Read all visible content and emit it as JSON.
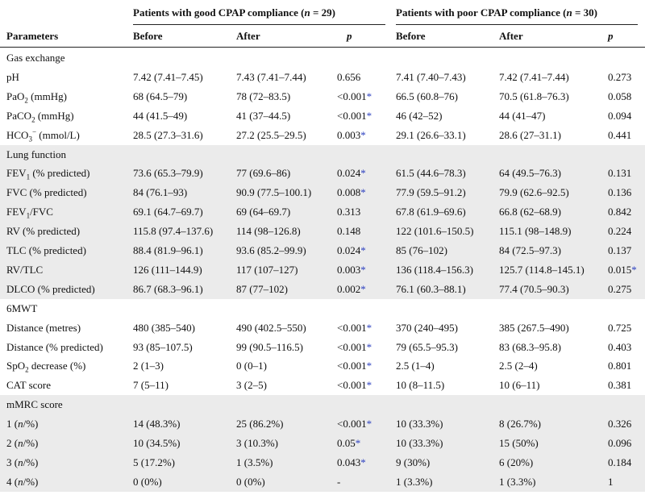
{
  "header": {
    "group_good": "Patients with good CPAP compliance",
    "group_good_n": "29",
    "group_poor": "Patients with poor CPAP compliance",
    "group_poor_n": "30",
    "n_label": "n",
    "equals": "=",
    "parameters": "Parameters",
    "before": "Before",
    "after": "After",
    "p": "p"
  },
  "sections": [
    {
      "title": "Gas exchange",
      "shaded": false,
      "rows": [
        {
          "label": "pH",
          "gb": "7.42 (7.41–7.45)",
          "ga": "7.43 (7.41–7.44)",
          "gp": "0.656",
          "gs": false,
          "pb": "7.41 (7.40–7.43)",
          "pa": "7.42 (7.41–7.44)",
          "pp": "0.273",
          "ps": false
        },
        {
          "label": "PaO",
          "sub": "2",
          "rest": " (mmHg)",
          "gb": "68 (64.5–79)",
          "ga": "78 (72–83.5)",
          "gp": "<0.001",
          "gs": true,
          "pb": "66.5 (60.8–76)",
          "pa": "70.5 (61.8–76.3)",
          "pp": "0.058",
          "ps": false
        },
        {
          "label": "PaCO",
          "sub": "2",
          "rest": " (mmHg)",
          "gb": "44 (41.5–49)",
          "ga": "41 (37–44.5)",
          "gp": "<0.001",
          "gs": true,
          "pb": "46 (42–52)",
          "pa": "44 (41–47)",
          "pp": "0.094",
          "ps": false
        },
        {
          "label": "HCO",
          "sub": "3",
          "sup": "−",
          "rest": " (mmol/L)",
          "gb": "28.5 (27.3–31.6)",
          "ga": "27.2 (25.5–29.5)",
          "gp": "0.003",
          "gs": true,
          "pb": "29.1 (26.6–33.1)",
          "pa": "28.6 (27–31.1)",
          "pp": "0.441",
          "ps": false
        }
      ]
    },
    {
      "title": "Lung function",
      "shaded": true,
      "rows": [
        {
          "label": "FEV",
          "sub": "1",
          "rest": " (% predicted)",
          "gb": "73.6 (65.3–79.9)",
          "ga": "77 (69.6–86)",
          "gp": "0.024",
          "gs": true,
          "pb": "61.5 (44.6–78.3)",
          "pa": "64 (49.5–76.3)",
          "pp": "0.131",
          "ps": false
        },
        {
          "label": "FVC (% predicted)",
          "gb": "84 (76.1–93)",
          "ga": "90.9 (77.5–100.1)",
          "gp": "0.008",
          "gs": true,
          "pb": "77.9 (59.5–91.2)",
          "pa": "79.9 (62.6–92.5)",
          "pp": "0.136",
          "ps": false
        },
        {
          "label": "FEV",
          "sub": "1",
          "rest": "/FVC",
          "gb": "69.1 (64.7–69.7)",
          "ga": "69 (64–69.7)",
          "gp": "0.313",
          "gs": false,
          "pb": "67.8 (61.9–69.6)",
          "pa": "66.8 (62–68.9)",
          "pp": "0.842",
          "ps": false
        },
        {
          "label": "RV (% predicted)",
          "gb": "115.8 (97.4–137.6)",
          "ga": "114 (98–126.8)",
          "gp": "0.148",
          "gs": false,
          "pb": "122 (101.6–150.5)",
          "pa": "115.1 (98–148.9)",
          "pp": "0.224",
          "ps": false
        },
        {
          "label": "TLC (% predicted)",
          "gb": "88.4 (81.9–96.1)",
          "ga": "93.6 (85.2–99.9)",
          "gp": "0.024",
          "gs": true,
          "pb": "85 (76–102)",
          "pa": "84 (72.5–97.3)",
          "pp": "0.137",
          "ps": false
        },
        {
          "label": "RV/TLC",
          "gb": "126 (111–144.9)",
          "ga": "117 (107–127)",
          "gp": "0.003",
          "gs": true,
          "pb": "136 (118.4–156.3)",
          "pa": "125.7 (114.8–145.1)",
          "pp": "0.015",
          "ps": true
        },
        {
          "label": "DLCO (% predicted)",
          "gb": "86.7 (68.3–96.1)",
          "ga": "87 (77–102)",
          "gp": "0.002",
          "gs": true,
          "pb": "76.1 (60.3–88.1)",
          "pa": "77.4 (70.5–90.3)",
          "pp": "0.275",
          "ps": false
        }
      ]
    },
    {
      "title": "6MWT",
      "shaded": false,
      "rows": [
        {
          "label": "Distance (metres)",
          "gb": "480 (385–540)",
          "ga": "490 (402.5–550)",
          "gp": "<0.001",
          "gs": true,
          "pb": "370 (240–495)",
          "pa": "385 (267.5–490)",
          "pp": "0.725",
          "ps": false
        },
        {
          "label": "Distance (% predicted)",
          "gb": "93 (85–107.5)",
          "ga": "99 (90.5–116.5)",
          "gp": "<0.001",
          "gs": true,
          "pb": "79 (65.5–95.3)",
          "pa": "83 (68.3–95.8)",
          "pp": "0.403",
          "ps": false
        },
        {
          "label": "SpO",
          "sub": "2",
          "rest": " decrease (%)",
          "gb": "2 (1–3)",
          "ga": "0 (0–1)",
          "gp": "<0.001",
          "gs": true,
          "pb": "2.5 (1–4)",
          "pa": "2.5 (2–4)",
          "pp": "0.801",
          "ps": false
        },
        {
          "label": "CAT score",
          "gb": "7 (5–11)",
          "ga": "3 (2–5)",
          "gp": "<0.001",
          "gs": true,
          "pb": "10 (8–11.5)",
          "pa": "10 (6–11)",
          "pp": "0.381",
          "ps": false
        }
      ]
    },
    {
      "title": "mMRC score",
      "shaded": true,
      "rows": [
        {
          "label": "1 (",
          "it": "n",
          "rest": "/%)",
          "gb": "14 (48.3%)",
          "ga": "25 (86.2%)",
          "gp": "<0.001",
          "gs": true,
          "pb": "10 (33.3%)",
          "pa": "8 (26.7%)",
          "pp": "0.326",
          "ps": false
        },
        {
          "label": "2 (",
          "it": "n",
          "rest": "/%)",
          "gb": "10 (34.5%)",
          "ga": "3 (10.3%)",
          "gp": "0.05",
          "gs": true,
          "pb": "10 (33.3%)",
          "pa": "15 (50%)",
          "pp": "0.096",
          "ps": false
        },
        {
          "label": "3 (",
          "it": "n",
          "rest": "/%)",
          "gb": "5 (17.2%)",
          "ga": "1 (3.5%)",
          "gp": "0.043",
          "gs": true,
          "pb": "9 (30%)",
          "pa": "6 (20%)",
          "pp": "0.184",
          "ps": false
        },
        {
          "label": "4 (",
          "it": "n",
          "rest": "/%)",
          "gb": "0 (0%)",
          "ga": "0 (0%)",
          "gp": "-",
          "gs": false,
          "pb": "1 (3.3%)",
          "pa": "1 (3.3%)",
          "pp": "1",
          "ps": false
        }
      ]
    }
  ],
  "star_symbol": "*"
}
